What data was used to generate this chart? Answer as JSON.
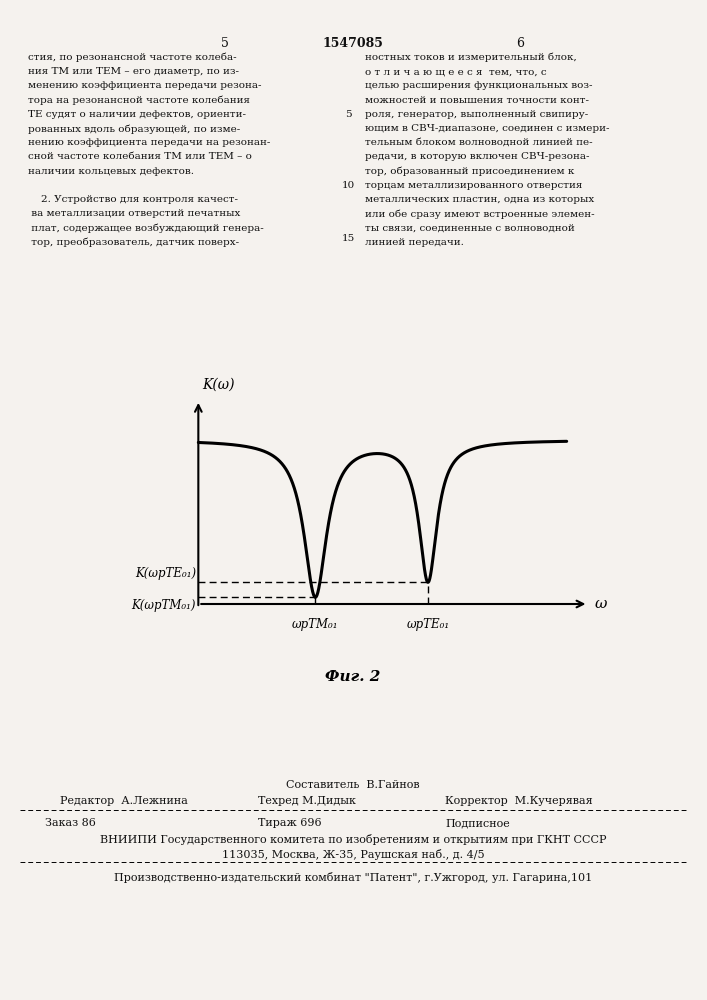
{
  "page_number_left": "5",
  "page_number_center": "1547085",
  "page_number_right": "6",
  "bg_color": "#f5f2ee",
  "text_color": "#111111",
  "fig_caption": "Фиг. 2",
  "y_axis_label": "K(ω)",
  "x_axis_label": "ω",
  "label_K_RTE": "K(ωрТЕ₀₁)",
  "label_K_RTM": "K(ωрТМ₀₁)",
  "x_label_RTM": "ωрТМ₀₁",
  "x_label_RTE": "ωрТЕ₀₁",
  "footer_sestavitel": "Составитель  В.Гайнов",
  "footer_redaktor": "Редактор  А.Лежнина",
  "footer_tehred": "Техред М.Дидык",
  "footer_korrektor": "Корректор  М.Кучерявая",
  "footer_zakaz": "Заказ 86",
  "footer_tirazh": "Тираж 696",
  "footer_podpisnoe": "Подписное",
  "footer_vniipи": "ВНИИПИ Государственного комитета по изобретениям и открытиям при ГКНТ СССР",
  "footer_address": "113035, Москва, Ж-35, Раушская наб., д. 4/5",
  "footer_patent": "Производственно-издательский комбинат \"Патент\", г.Ужгород, ул. Гагарина,101"
}
